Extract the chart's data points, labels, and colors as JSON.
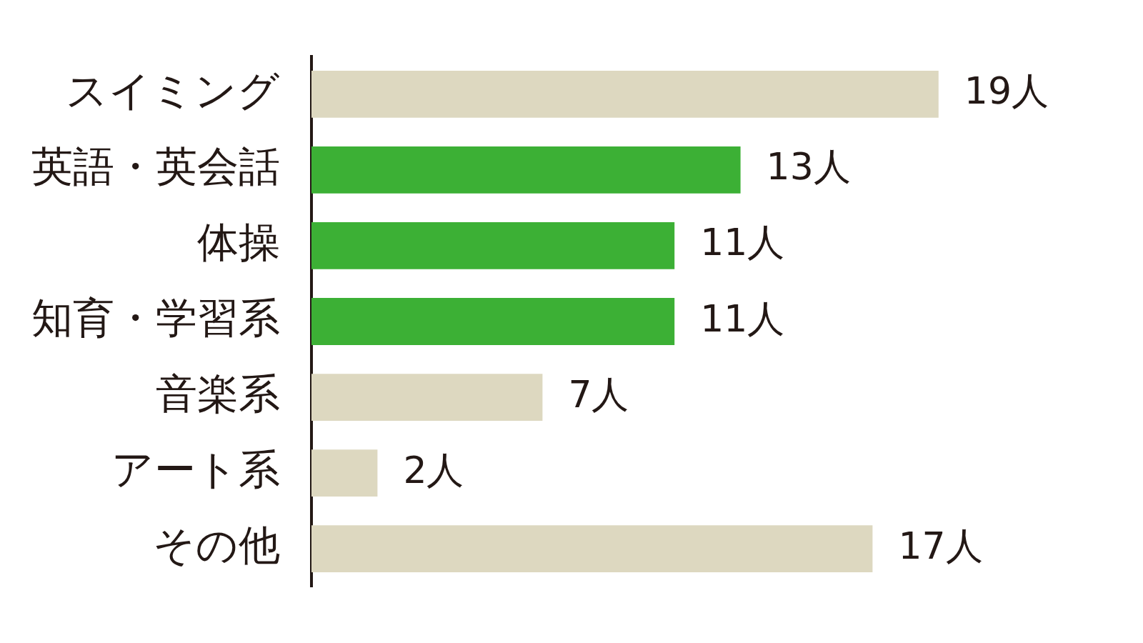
{
  "chart_data": {
    "type": "bar",
    "orientation": "horizontal",
    "categories": [
      "スイミング",
      "英語・英会話",
      "体操",
      "知育・学習系",
      "音楽系",
      "アート系",
      "その他"
    ],
    "values": [
      19,
      13,
      11,
      11,
      7,
      2,
      17
    ],
    "colors": [
      "#ddd8c0",
      "#3cb035",
      "#3cb035",
      "#3cb035",
      "#ddd8c0",
      "#ddd8c0",
      "#ddd8c0"
    ],
    "value_labels": [
      "19人",
      "13人",
      "11人",
      "11人",
      "7人",
      "2人",
      "17人"
    ]
  }
}
